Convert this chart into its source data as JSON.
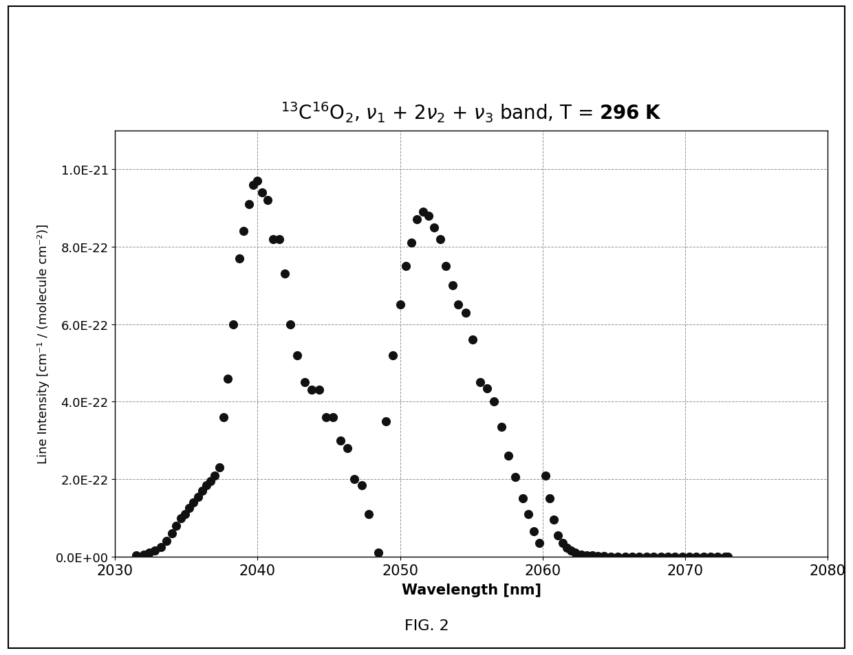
{
  "xlabel": "Wavelength [nm]",
  "ylabel": "Line Intensity [cm⁻¹ / (molecule cm⁻²)]",
  "xlim": [
    2030,
    2080
  ],
  "ylim": [
    0.0,
    1.1e-21
  ],
  "yticks": [
    0.0,
    2e-22,
    4e-22,
    6e-22,
    8e-22,
    1e-21
  ],
  "ytick_labels": [
    "0.0E+00",
    "2.0E-22",
    "4.0E-22",
    "6.0E-22",
    "8.0E-22",
    "1.0E-21"
  ],
  "xticks": [
    2030,
    2040,
    2050,
    2060,
    2070,
    2080
  ],
  "marker_color": "#111111",
  "marker_size": 90,
  "fig_caption": "FIG. 2",
  "x_data": [
    2031.5,
    2032.0,
    2032.4,
    2032.8,
    2033.2,
    2033.6,
    2034.0,
    2034.3,
    2034.6,
    2034.9,
    2035.2,
    2035.5,
    2035.8,
    2036.1,
    2036.4,
    2036.7,
    2037.0,
    2037.3,
    2037.6,
    2037.9,
    2038.3,
    2038.7,
    2039.0,
    2039.4,
    2039.7,
    2040.0,
    2040.3,
    2040.7,
    2041.1,
    2041.5,
    2041.9,
    2042.3,
    2042.8,
    2043.3,
    2043.8,
    2044.3,
    2044.8,
    2045.3,
    2045.8,
    2046.3,
    2046.8,
    2047.3,
    2047.8,
    2048.5,
    2049.0,
    2049.5,
    2050.0,
    2050.4,
    2050.8,
    2051.2,
    2051.6,
    2052.0,
    2052.4,
    2052.8,
    2053.2,
    2053.7,
    2054.1,
    2054.6,
    2055.1,
    2055.6,
    2056.1,
    2056.6,
    2057.1,
    2057.6,
    2058.1,
    2058.6,
    2059.0,
    2059.4,
    2059.8,
    2060.1,
    2060.4,
    2060.7,
    2061.0,
    2061.3,
    2061.6,
    2061.9,
    2062.2,
    2062.5,
    2062.8,
    2063.1,
    2063.5,
    2063.9,
    2064.3,
    2064.7,
    2065.1,
    2065.5,
    2066.0,
    2066.5,
    2067.0,
    2067.5,
    2068.0,
    2068.5,
    2069.0,
    2069.5,
    2070.0,
    2070.5,
    2071.0,
    2071.5,
    2072.0,
    2072.5,
    2073.0
  ],
  "y_data": [
    3e-24,
    6e-24,
    1e-23,
    1.5e-23,
    2.5e-23,
    4e-23,
    6e-23,
    8e-23,
    1e-22,
    1.1e-22,
    1.25e-22,
    1.4e-22,
    1.55e-22,
    1.7e-22,
    1.85e-22,
    1.95e-22,
    2.1e-22,
    2.3e-22,
    3.6e-22,
    4.6e-22,
    6e-22,
    7.7e-22,
    8.4e-22,
    9.1e-22,
    9.6e-22,
    9.7e-22,
    9.4e-22,
    9.2e-22,
    8.2e-22,
    8.2e-22,
    7.3e-22,
    6e-22,
    5.2e-22,
    4.5e-22,
    4.3e-22,
    4.3e-22,
    3.6e-22,
    3.6e-22,
    3e-22,
    2.8e-22,
    2e-22,
    1.85e-22,
    1.1e-22,
    1.1e-23,
    3.5e-22,
    5.2e-22,
    6.5e-22,
    7.5e-22,
    8.1e-22,
    8.7e-22,
    8.9e-22,
    8.8e-22,
    8.5e-22,
    8.2e-22,
    7.5e-22,
    7e-22,
    6.5e-22,
    6.3e-22,
    5.6e-22,
    4.5e-22,
    4.35e-22,
    4e-22,
    3.35e-22,
    2.6e-22,
    2.05e-22,
    1.5e-22,
    1.1e-22,
    6.5e-23,
    3.5e-23,
    2.1e-22,
    1.5e-22,
    9.5e-23,
    5.5e-23,
    3.5e-23,
    2.2e-23,
    1.5e-23,
    1e-23,
    6e-24,
    4e-24,
    2.5e-24,
    1.5e-24,
    1e-24,
    6e-25,
    4e-25,
    2.5e-25,
    1.5e-25,
    1e-25,
    6e-26,
    3.5e-26,
    2e-26,
    1.2e-26,
    7e-27,
    4e-27,
    2.5e-27,
    1.5e-27,
    1e-27,
    6e-28,
    4e-28,
    2.5e-28,
    1.5e-28,
    1e-28
  ]
}
